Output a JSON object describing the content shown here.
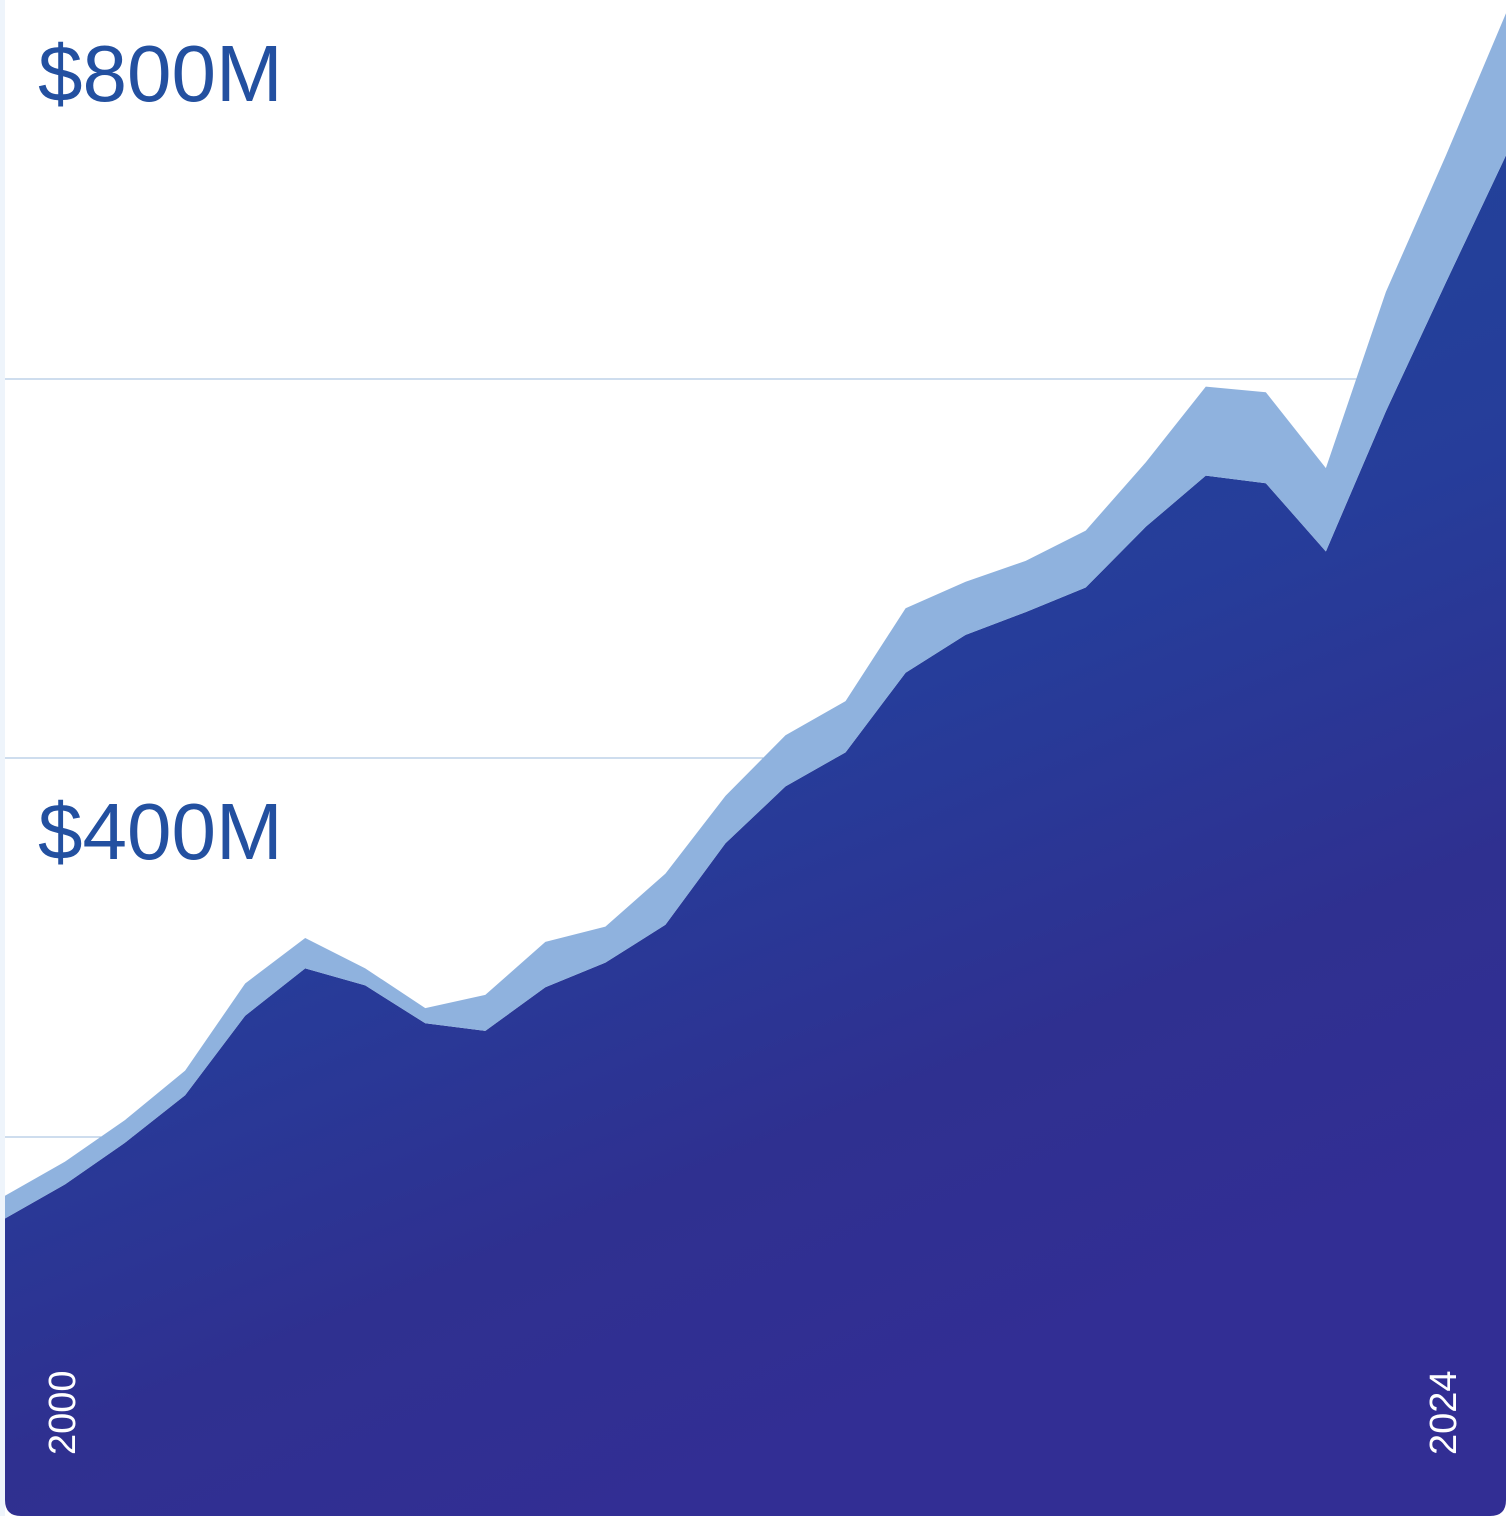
{
  "chart_data": {
    "type": "stacked_area",
    "categories": [
      "2000",
      null,
      null,
      null,
      null,
      null,
      null,
      null,
      null,
      null,
      null,
      null,
      null,
      null,
      null,
      null,
      null,
      null,
      null,
      null,
      null,
      null,
      null,
      null,
      null,
      "2024"
    ],
    "series": [
      {
        "color": "#223f98",
        "values": [
          157,
          175,
          197,
          222,
          264,
          289,
          280,
          260,
          256,
          279,
          292,
          312,
          355,
          385,
          403,
          445,
          465,
          477,
          490,
          522,
          549,
          545,
          509,
          583,
          651,
          718
        ]
      },
      {
        "color": "#8fb2de",
        "values": [
          12,
          12,
          12,
          13,
          17,
          16,
          9,
          8,
          19,
          24,
          19,
          27,
          25,
          27,
          27,
          34,
          28,
          27,
          30,
          34,
          47,
          48,
          44,
          63,
          67,
          75
        ]
      }
    ],
    "ylim": [
      0,
      800
    ],
    "yticks": [
      {
        "value": 400,
        "label": "$400M"
      },
      {
        "value": 800,
        "label": "$800M"
      }
    ],
    "grid_lines": [
      200,
      400,
      600
    ]
  }
}
